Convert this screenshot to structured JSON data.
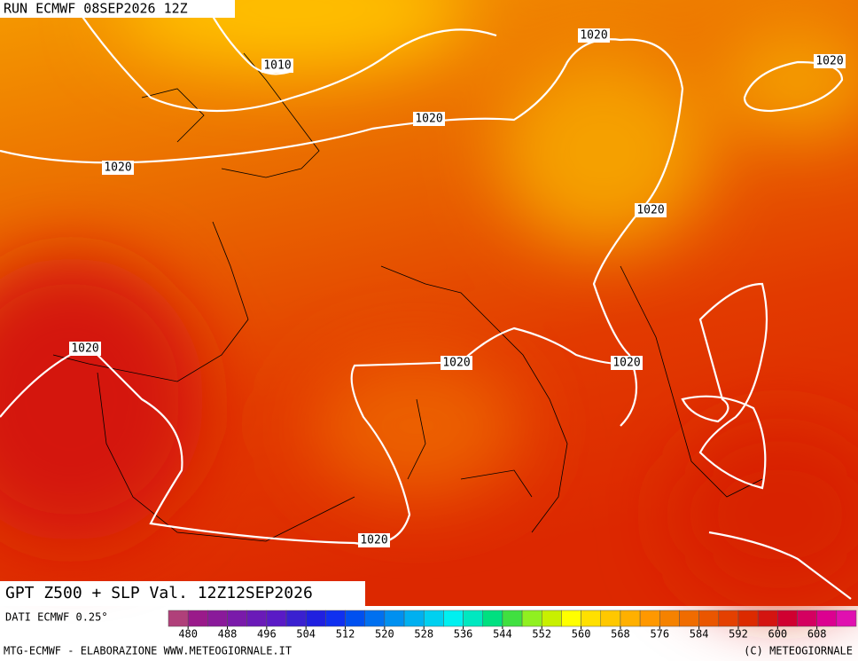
{
  "header": {
    "run": "RUN ECMWF 08SEP2026 12Z"
  },
  "map": {
    "isobar_labels": [
      "1010",
      "1020",
      "1020",
      "1020",
      "1020",
      "1020",
      "1020",
      "1020",
      "1020",
      "1020"
    ]
  },
  "footer": {
    "title": "GPT Z500 + SLP Val. 12Z12SEP2026",
    "source": "DATI ECMWF 0.25°",
    "credit": "MTG-ECMWF - ELABORAZIONE WWW.METEOGIORNALE.IT",
    "copyright": "(C) METEOGIORNALE"
  },
  "colorbar": {
    "ticks": [
      480,
      488,
      496,
      504,
      512,
      520,
      528,
      536,
      544,
      552,
      560,
      568,
      576,
      584,
      592,
      600,
      608
    ],
    "colors": [
      "#b0407a",
      "#9a1a8a",
      "#8a1a9a",
      "#7a1aaa",
      "#6a1ab8",
      "#5a1ac6",
      "#3a20d0",
      "#2020e0",
      "#1030f0",
      "#0050f0",
      "#0070f0",
      "#0090f0",
      "#00b0f0",
      "#00d0f0",
      "#00f0f0",
      "#00e8c0",
      "#00e080",
      "#40e040",
      "#90f020",
      "#c8f000",
      "#ffff00",
      "#ffe000",
      "#ffc800",
      "#ffb000",
      "#ff9800",
      "#f58200",
      "#f06c00",
      "#ea5600",
      "#e44000",
      "#dc2a00",
      "#d41410",
      "#d00030",
      "#d40060",
      "#dc0090",
      "#e010b0"
    ]
  }
}
